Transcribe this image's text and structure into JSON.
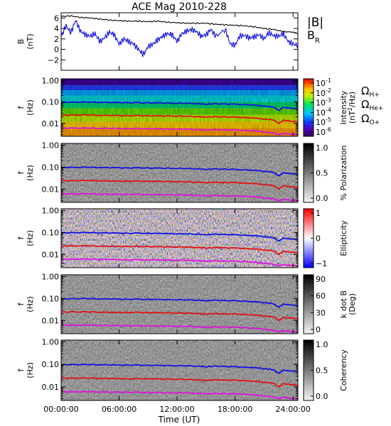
{
  "chart_data": {
    "title": "ACE Mag 2010-228",
    "xlabel": "Time (UT)",
    "x_ticks": [
      "00:00:00",
      "06:00:00",
      "12:00:00",
      "18:00:00",
      "24:00:00"
    ],
    "x_tick_hours": [
      0,
      6,
      12,
      18,
      24
    ],
    "x_range_hours": [
      0,
      24.5
    ],
    "panels": [
      {
        "id": "mag",
        "type": "line",
        "ylabel": "B",
        "yunits": "(nT)",
        "ylim": [
          -4,
          7
        ],
        "y_ticks": [
          -2,
          0,
          2,
          4,
          6
        ],
        "y_tick_labels": [
          "−2",
          "0",
          "2",
          "4",
          "6"
        ],
        "series": [
          {
            "name": "|B|",
            "color": "#000000",
            "points": [
              [
                0,
                6.3
              ],
              [
                1,
                6.4
              ],
              [
                2,
                6.1
              ],
              [
                3,
                6.0
              ],
              [
                4,
                5.8
              ],
              [
                5,
                5.6
              ],
              [
                6,
                5.5
              ],
              [
                7,
                5.4
              ],
              [
                8,
                5.4
              ],
              [
                9,
                5.3
              ],
              [
                10,
                5.4
              ],
              [
                11,
                5.2
              ],
              [
                12,
                5.1
              ],
              [
                13,
                5.0
              ],
              [
                14,
                5.0
              ],
              [
                15,
                5.0
              ],
              [
                16,
                4.8
              ],
              [
                17,
                4.7
              ],
              [
                18,
                4.6
              ],
              [
                19,
                4.5
              ],
              [
                20,
                4.3
              ],
              [
                21,
                4.0
              ],
              [
                22,
                3.8
              ],
              [
                23,
                3.4
              ],
              [
                24,
                3.3
              ],
              [
                24.5,
                3.0
              ]
            ]
          },
          {
            "name": "B",
            "subscript": "R",
            "color": "#1010e0",
            "points": [
              [
                0,
                2.5
              ],
              [
                0.5,
                4.5
              ],
              [
                1,
                3.2
              ],
              [
                1.5,
                5.5
              ],
              [
                2,
                3.5
              ],
              [
                2.5,
                2.8
              ],
              [
                3,
                2.5
              ],
              [
                3.5,
                3.0
              ],
              [
                4,
                1.5
              ],
              [
                4.5,
                2.2
              ],
              [
                5,
                3.3
              ],
              [
                5.5,
                2.8
              ],
              [
                6,
                1.0
              ],
              [
                6.5,
                2.0
              ],
              [
                7,
                1.5
              ],
              [
                7.5,
                1.0
              ],
              [
                8,
                0.0
              ],
              [
                8.5,
                -1.0
              ],
              [
                9,
                0.5
              ],
              [
                9.5,
                1.0
              ],
              [
                10,
                1.8
              ],
              [
                10.5,
                2.5
              ],
              [
                11,
                3.0
              ],
              [
                11.5,
                2.8
              ],
              [
                12,
                1.5
              ],
              [
                12.5,
                3.0
              ],
              [
                13,
                3.5
              ],
              [
                13.5,
                3.8
              ],
              [
                14,
                3.4
              ],
              [
                14.5,
                2.5
              ],
              [
                15,
                2.8
              ],
              [
                15.5,
                3.8
              ],
              [
                16,
                2.5
              ],
              [
                17,
                3.8
              ],
              [
                17.5,
                1.0
              ],
              [
                18,
                0.8
              ],
              [
                18.5,
                2.6
              ],
              [
                19,
                2.6
              ],
              [
                19.5,
                2.2
              ],
              [
                20,
                2.4
              ],
              [
                20.5,
                2.8
              ],
              [
                21,
                2.0
              ],
              [
                21.5,
                3.2
              ],
              [
                22,
                2.6
              ],
              [
                22.5,
                2.5
              ],
              [
                23,
                3.0
              ],
              [
                23.5,
                1.5
              ],
              [
                24,
                1.0
              ],
              [
                24.5,
                0.8
              ]
            ]
          }
        ]
      },
      {
        "id": "intensity",
        "type": "heatmap",
        "ylabel": "f",
        "yunits": "(Hz)",
        "yscale": "log",
        "ylim": [
          0.0025,
          1.2
        ],
        "y_ticks": [
          0.01,
          0.1,
          1.0
        ],
        "y_tick_labels": [
          "0.01",
          "0.10",
          "1.00"
        ],
        "colorbar": {
          "label": "Intensity",
          "units_pre": "(nT",
          "units_sup": "2",
          "units_post": "/Hz)",
          "ticks": [
            "10",
            "10",
            "10",
            "10",
            "10",
            "10"
          ],
          "tick_exponents": [
            "-1",
            "-2",
            "-3",
            "-4",
            "-5",
            "-6"
          ],
          "colormap": "rainbow"
        },
        "show_curves": true
      },
      {
        "id": "polarization",
        "type": "heatmap",
        "ylabel": "f",
        "yunits": "(Hz)",
        "yscale": "log",
        "ylim": [
          0.0025,
          1.2
        ],
        "y_ticks": [
          0.01,
          0.1,
          1.0
        ],
        "y_tick_labels": [
          "0.01",
          "0.10",
          "1.00"
        ],
        "colorbar": {
          "label": "% Polarization",
          "ticks": [
            "1.0",
            "0.5",
            "0.0"
          ],
          "colormap": "gray"
        },
        "show_curves": true
      },
      {
        "id": "ellipticity",
        "type": "heatmap",
        "ylabel": "f",
        "yunits": "(Hz)",
        "yscale": "log",
        "ylim": [
          0.0025,
          1.2
        ],
        "y_ticks": [
          0.01,
          0.1,
          1.0
        ],
        "y_tick_labels": [
          "0.01",
          "0.10",
          "1.00"
        ],
        "colorbar": {
          "label": "Ellipticity",
          "ticks": [
            "1",
            "0",
            "−1"
          ],
          "colormap": "bwr"
        },
        "show_curves": true
      },
      {
        "id": "kdotb",
        "type": "heatmap",
        "ylabel": "f",
        "yunits": "(Hz)",
        "yscale": "log",
        "ylim": [
          0.0025,
          1.2
        ],
        "y_ticks": [
          0.01,
          0.1,
          1.0
        ],
        "y_tick_labels": [
          "0.01",
          "0.10",
          "1.00"
        ],
        "colorbar": {
          "label": "k dot B",
          "units": "(Deg)",
          "ticks": [
            "90",
            "60",
            "30",
            "0"
          ],
          "colormap": "gray"
        },
        "show_curves": true
      },
      {
        "id": "coherency",
        "type": "heatmap",
        "ylabel": "f",
        "yunits": "(Hz)",
        "yscale": "log",
        "ylim": [
          0.0025,
          1.2
        ],
        "y_ticks": [
          0.01,
          0.1,
          1.0
        ],
        "y_tick_labels": [
          "0.01",
          "0.10",
          "1.00"
        ],
        "colorbar": {
          "label": "Coherency",
          "ticks": [
            "1.0",
            "0.5",
            "0.0"
          ],
          "colormap": "gray"
        },
        "show_curves": true
      }
    ],
    "gyro_curves": [
      {
        "name": "Ω",
        "subscript": "H+",
        "color": "#1010e0",
        "points": [
          [
            0,
            0.095
          ],
          [
            2,
            0.1
          ],
          [
            4,
            0.097
          ],
          [
            6,
            0.093
          ],
          [
            8,
            0.092
          ],
          [
            10,
            0.09
          ],
          [
            12,
            0.088
          ],
          [
            14,
            0.085
          ],
          [
            15,
            0.078
          ],
          [
            16,
            0.083
          ],
          [
            18,
            0.078
          ],
          [
            20,
            0.072
          ],
          [
            21,
            0.065
          ],
          [
            22,
            0.058
          ],
          [
            22.5,
            0.04
          ],
          [
            23,
            0.055
          ],
          [
            24,
            0.05
          ],
          [
            24.5,
            0.048
          ]
        ]
      },
      {
        "name": "Ω",
        "subscript": "He+",
        "color": "#e01010",
        "points": [
          [
            0,
            0.024
          ],
          [
            2,
            0.025
          ],
          [
            4,
            0.024
          ],
          [
            6,
            0.023
          ],
          [
            8,
            0.023
          ],
          [
            10,
            0.0225
          ],
          [
            12,
            0.022
          ],
          [
            14,
            0.021
          ],
          [
            15,
            0.0195
          ],
          [
            16,
            0.0205
          ],
          [
            18,
            0.0195
          ],
          [
            20,
            0.018
          ],
          [
            21,
            0.016
          ],
          [
            22,
            0.0145
          ],
          [
            22.5,
            0.01
          ],
          [
            23,
            0.0138
          ],
          [
            24,
            0.0125
          ],
          [
            24.5,
            0.012
          ]
        ]
      },
      {
        "name": "Ω",
        "subscript": "O+",
        "color": "#e010e0",
        "points": [
          [
            0,
            0.006
          ],
          [
            2,
            0.0062
          ],
          [
            4,
            0.006
          ],
          [
            6,
            0.0058
          ],
          [
            8,
            0.0057
          ],
          [
            10,
            0.0056
          ],
          [
            12,
            0.0055
          ],
          [
            14,
            0.0053
          ],
          [
            15,
            0.0049
          ],
          [
            16,
            0.0051
          ],
          [
            18,
            0.0049
          ],
          [
            20,
            0.0045
          ],
          [
            21,
            0.004
          ],
          [
            22,
            0.0036
          ],
          [
            22.5,
            0.003
          ],
          [
            23,
            0.0034
          ],
          [
            24,
            0.0031
          ],
          [
            24.5,
            0.003
          ]
        ]
      }
    ]
  },
  "colors": {
    "mag_total": "#000000",
    "mag_radial": "#1010e0",
    "proton": "#1010e0",
    "helium": "#e01010",
    "oxygen": "#e010e0"
  }
}
